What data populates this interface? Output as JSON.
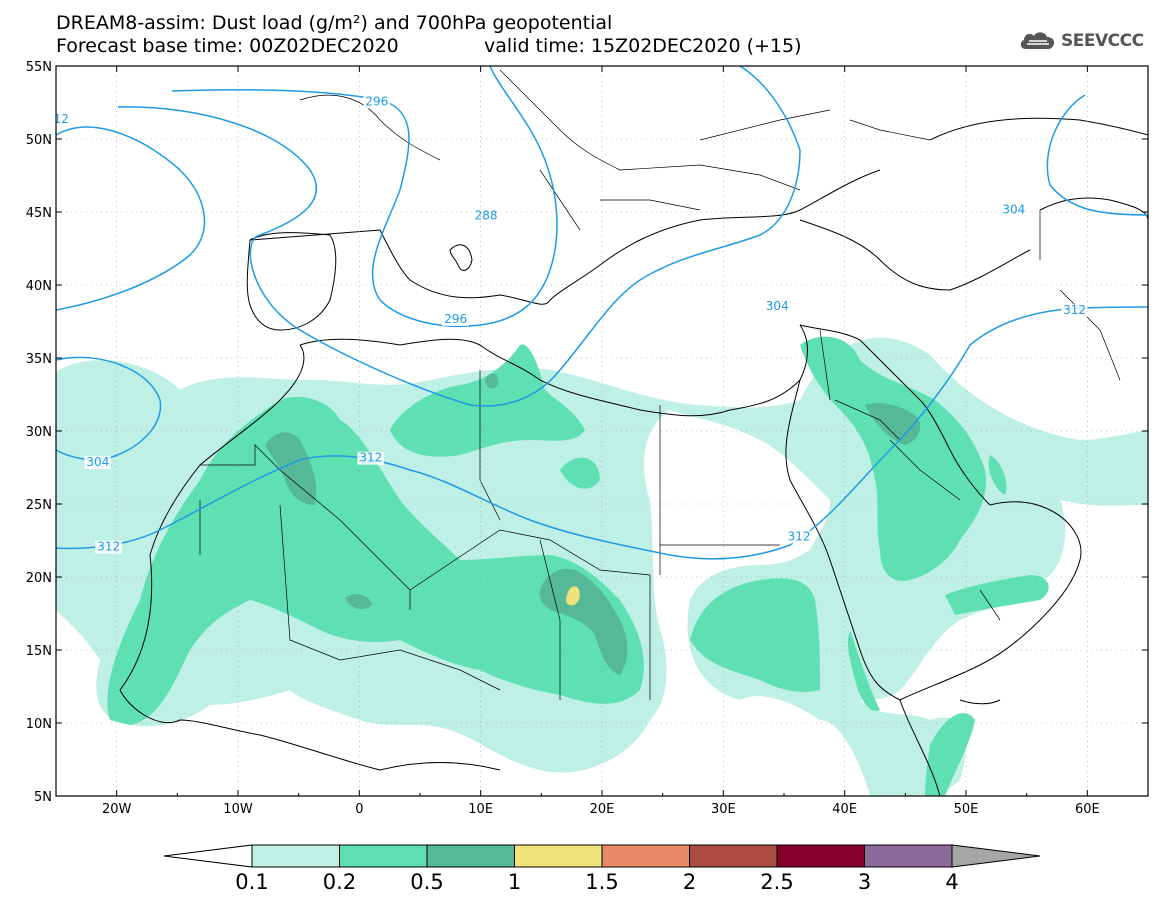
{
  "title": {
    "line1": "DREAM8-assim: Dust load (g/m²) and 700hPa geopotential",
    "line2_left": "Forecast base time: 00Z02DEC2020",
    "line2_right": "valid time: 15Z02DEC2020 (+15)"
  },
  "logo": {
    "text": "SEEVCCC",
    "icon": "cloud-icon"
  },
  "axes": {
    "lon_range": [
      -25,
      65
    ],
    "lat_range": [
      5,
      55
    ],
    "lon_ticks": [
      {
        "value": -20,
        "label": "20W"
      },
      {
        "value": -10,
        "label": "10W"
      },
      {
        "value": 0,
        "label": "0"
      },
      {
        "value": 10,
        "label": "10E"
      },
      {
        "value": 20,
        "label": "20E"
      },
      {
        "value": 30,
        "label": "30E"
      },
      {
        "value": 40,
        "label": "40E"
      },
      {
        "value": 50,
        "label": "50E"
      },
      {
        "value": 60,
        "label": "60E"
      }
    ],
    "lat_ticks": [
      {
        "value": 55,
        "label": "55N"
      },
      {
        "value": 50,
        "label": "50N"
      },
      {
        "value": 45,
        "label": "45N"
      },
      {
        "value": 40,
        "label": "40N"
      },
      {
        "value": 35,
        "label": "35N"
      },
      {
        "value": 30,
        "label": "30N"
      },
      {
        "value": 25,
        "label": "25N"
      },
      {
        "value": 20,
        "label": "20N"
      },
      {
        "value": 15,
        "label": "15N"
      },
      {
        "value": 10,
        "label": "10N"
      },
      {
        "value": 5,
        "label": "5N"
      }
    ],
    "grid": "dotted"
  },
  "contour_labels": [
    {
      "text": "12",
      "lon": -25.2,
      "lat": 51.1
    },
    {
      "text": "296",
      "lon": 0.5,
      "lat": 52.3
    },
    {
      "text": "288",
      "lon": 9.5,
      "lat": 44.5
    },
    {
      "text": "304",
      "lon": 33.5,
      "lat": 38.3
    },
    {
      "text": "296",
      "lon": 7.0,
      "lat": 37.4
    },
    {
      "text": "312",
      "lon": 58.0,
      "lat": 38.0
    },
    {
      "text": "304",
      "lon": 53.0,
      "lat": 44.9
    },
    {
      "text": "312",
      "lon": 0.0,
      "lat": 27.9
    },
    {
      "text": "304",
      "lon": -22.5,
      "lat": 27.6
    },
    {
      "text": "312",
      "lon": -21.6,
      "lat": 21.8
    },
    {
      "text": "312",
      "lon": 35.3,
      "lat": 22.5
    }
  ],
  "colorbar": {
    "labels": [
      "0.1",
      "0.2",
      "0.5",
      "1",
      "1.5",
      "2",
      "2.5",
      "3",
      "4"
    ],
    "colors": {
      "under": "#ffffff",
      "bins": [
        "#bff0e6",
        "#5fe0b3",
        "#55b896",
        "#f1e37b",
        "#e88a68",
        "#ad4c43",
        "#82002a",
        "#8c6b9b"
      ],
      "over": "#a6a6a6"
    }
  },
  "colors": {
    "contour": "#1e9be6",
    "dust_light": "#bff0e6",
    "dust_medium": "#5fe0b3",
    "dust_dark": "#55b896",
    "dust_peak": "#f1e37b"
  }
}
